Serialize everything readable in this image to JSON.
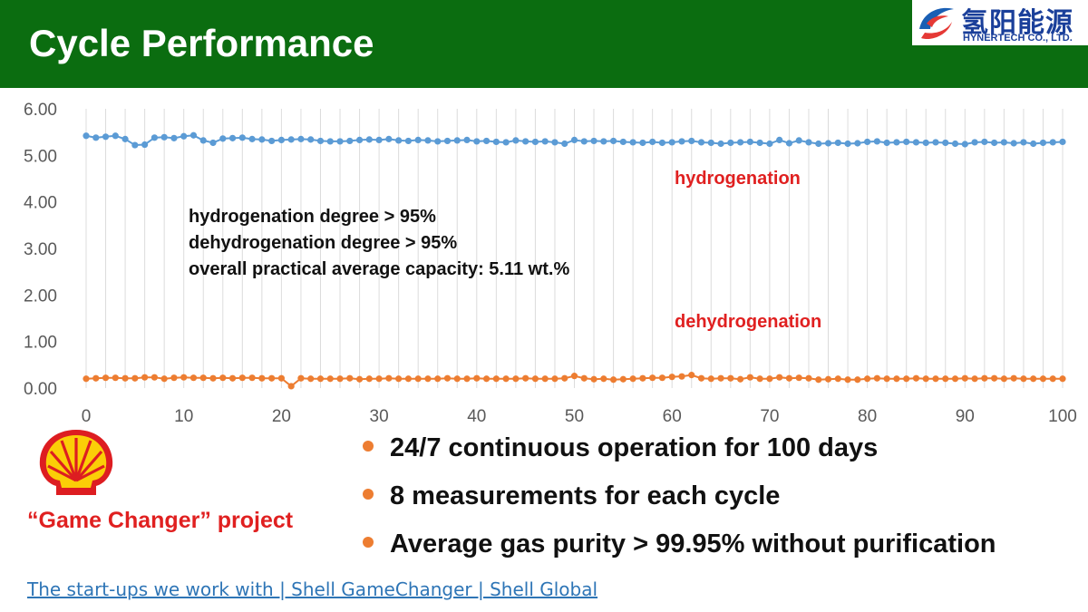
{
  "header": {
    "title": "Cycle Performance"
  },
  "logo": {
    "cn": "氢阳能源",
    "en": "HYNERTECH CO., LTD."
  },
  "chart_data": {
    "type": "line",
    "x": [
      0,
      1,
      2,
      3,
      4,
      5,
      6,
      7,
      8,
      9,
      10,
      11,
      12,
      13,
      14,
      15,
      16,
      17,
      18,
      19,
      20,
      21,
      22,
      23,
      24,
      25,
      26,
      27,
      28,
      29,
      30,
      31,
      32,
      33,
      34,
      35,
      36,
      37,
      38,
      39,
      40,
      41,
      42,
      43,
      44,
      45,
      46,
      47,
      48,
      49,
      50,
      51,
      52,
      53,
      54,
      55,
      56,
      57,
      58,
      59,
      60,
      61,
      62,
      63,
      64,
      65,
      66,
      67,
      68,
      69,
      70,
      71,
      72,
      73,
      74,
      75,
      76,
      77,
      78,
      79,
      80,
      81,
      82,
      83,
      84,
      85,
      86,
      87,
      88,
      89,
      90,
      91,
      92,
      93,
      94,
      95,
      96,
      97,
      98,
      99,
      100
    ],
    "series": [
      {
        "name": "hydrogenation",
        "color": "#5b9bd5",
        "values": [
          5.42,
          5.38,
          5.4,
          5.42,
          5.35,
          5.22,
          5.23,
          5.38,
          5.39,
          5.37,
          5.41,
          5.43,
          5.32,
          5.27,
          5.36,
          5.37,
          5.38,
          5.35,
          5.34,
          5.31,
          5.33,
          5.34,
          5.35,
          5.34,
          5.31,
          5.3,
          5.3,
          5.31,
          5.33,
          5.34,
          5.33,
          5.35,
          5.32,
          5.31,
          5.33,
          5.32,
          5.3,
          5.31,
          5.32,
          5.33,
          5.3,
          5.31,
          5.29,
          5.28,
          5.32,
          5.3,
          5.29,
          5.3,
          5.28,
          5.25,
          5.33,
          5.3,
          5.31,
          5.3,
          5.31,
          5.29,
          5.28,
          5.27,
          5.29,
          5.27,
          5.28,
          5.3,
          5.31,
          5.28,
          5.27,
          5.25,
          5.27,
          5.28,
          5.29,
          5.27,
          5.25,
          5.33,
          5.26,
          5.32,
          5.28,
          5.25,
          5.26,
          5.27,
          5.25,
          5.26,
          5.29,
          5.3,
          5.27,
          5.28,
          5.29,
          5.28,
          5.27,
          5.28,
          5.27,
          5.25,
          5.24,
          5.28,
          5.29,
          5.27,
          5.28,
          5.26,
          5.28,
          5.25,
          5.27,
          5.28,
          5.29
        ]
      },
      {
        "name": "dehydrogenation",
        "color": "#ed7d31",
        "values": [
          0.2,
          0.21,
          0.22,
          0.22,
          0.21,
          0.21,
          0.23,
          0.23,
          0.2,
          0.22,
          0.23,
          0.22,
          0.22,
          0.21,
          0.22,
          0.21,
          0.22,
          0.22,
          0.21,
          0.21,
          0.21,
          0.04,
          0.21,
          0.2,
          0.2,
          0.2,
          0.2,
          0.21,
          0.19,
          0.2,
          0.2,
          0.21,
          0.2,
          0.2,
          0.2,
          0.2,
          0.2,
          0.21,
          0.2,
          0.2,
          0.21,
          0.2,
          0.2,
          0.2,
          0.2,
          0.21,
          0.2,
          0.2,
          0.2,
          0.21,
          0.26,
          0.21,
          0.19,
          0.2,
          0.18,
          0.19,
          0.2,
          0.21,
          0.22,
          0.22,
          0.24,
          0.25,
          0.28,
          0.21,
          0.2,
          0.21,
          0.21,
          0.19,
          0.23,
          0.2,
          0.2,
          0.23,
          0.21,
          0.22,
          0.21,
          0.18,
          0.19,
          0.2,
          0.18,
          0.18,
          0.2,
          0.21,
          0.2,
          0.2,
          0.2,
          0.21,
          0.2,
          0.2,
          0.2,
          0.2,
          0.21,
          0.2,
          0.21,
          0.21,
          0.2,
          0.21,
          0.2,
          0.2,
          0.2,
          0.2,
          0.2
        ]
      }
    ],
    "ylim": [
      0,
      6
    ],
    "y_ticks": [
      "0.00",
      "1.00",
      "2.00",
      "3.00",
      "4.00",
      "5.00",
      "6.00"
    ],
    "x_ticks": [
      0,
      10,
      20,
      30,
      40,
      50,
      60,
      70,
      80,
      90,
      100
    ],
    "xlim": [
      0,
      100
    ],
    "grid": "vertical",
    "annotations": [
      "hydrogenation degree > 95%",
      "dehydrogenation degree > 95%",
      "overall practical average capacity:  5.11 wt.%"
    ]
  },
  "bullets": [
    "24/7 continuous operation for 100 days",
    "8 measurements for each cycle",
    "Average gas purity > 99.95% without purification"
  ],
  "project_label": "“Game Changer” project",
  "link_text": "The start-ups we work with | Shell GameChanger | Shell Global",
  "colors": {
    "header": "#0b6d10",
    "accent": "#ed7d31",
    "series_label": "#e02020",
    "link": "#2e75b6"
  }
}
